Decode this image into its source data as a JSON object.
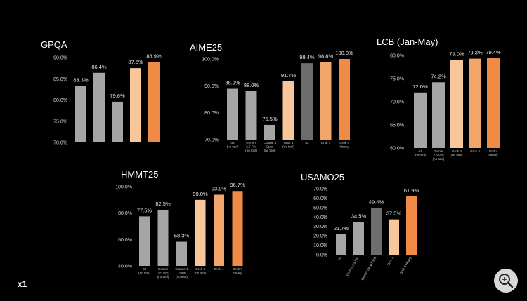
{
  "logo_text": "x1",
  "colors": {
    "grey": "#a3a6a2",
    "dark_grey": "#6b6e6b",
    "light_orange": "#f7c79b",
    "mid_orange": "#f3a66b",
    "orange": "#ef8b45",
    "tick_text": "#d9d9d9"
  },
  "icons": {
    "zoom": "zoom-in-icon"
  },
  "chart_data": [
    {
      "type": "bar",
      "title": "GPQA",
      "categories": [
        "",
        "",
        "",
        "",
        ""
      ],
      "values": [
        83.3,
        86.4,
        79.6,
        87.5,
        88.9
      ],
      "value_labels": [
        "83.3%",
        "86.4%",
        "79.6%",
        "87.5%",
        "88.9%"
      ],
      "colors": [
        "grey",
        "grey",
        "grey",
        "light_orange",
        "orange"
      ],
      "ylim": [
        70,
        90
      ],
      "yticks": [
        "70.0%",
        "75.0%",
        "80.0%",
        "85.0%",
        "90.0%"
      ],
      "ytick_values": [
        70,
        75,
        80,
        85,
        90
      ]
    },
    {
      "type": "bar",
      "title": "AIME25",
      "categories": [
        "o3\n(no tool)",
        "Gemini\n2.5 Pro\n(no tool)",
        "Claude 4\nOpus\n(no tool)",
        "Grok 4\n(no tool)",
        "o3",
        "Grok 4",
        "Grok 4\nHeavy"
      ],
      "values": [
        88.9,
        88.0,
        75.5,
        91.7,
        98.4,
        98.8,
        100.0
      ],
      "value_labels": [
        "88.9%",
        "88.0%",
        "75.5%",
        "91.7%",
        "98.4%",
        "98.8%",
        "100.0%"
      ],
      "colors": [
        "grey",
        "grey",
        "grey",
        "light_orange",
        "dark_grey",
        "mid_orange",
        "orange"
      ],
      "ylim": [
        70,
        100
      ],
      "yticks": [
        "70.0%",
        "80.0%",
        "90.0%",
        "100.0%"
      ],
      "ytick_values": [
        70,
        80,
        90,
        100
      ]
    },
    {
      "type": "bar",
      "title": "LCB (Jan-May)",
      "categories": [
        "o3\n(no tool)",
        "Gemini\n2.5 Pro\n(no tool)",
        "Grok 4\n(no tool)",
        "Grok 4",
        "Grok4\nHeavy"
      ],
      "values": [
        72.0,
        74.2,
        79.0,
        79.3,
        79.4
      ],
      "value_labels": [
        "72.0%",
        "74.2%",
        "79.0%",
        "79.3%",
        "79.4%"
      ],
      "colors": [
        "grey",
        "grey",
        "light_orange",
        "mid_orange",
        "orange"
      ],
      "ylim": [
        60,
        80
      ],
      "yticks": [
        "60.0%",
        "65.0%",
        "70.0%",
        "75.0%",
        "80.0%"
      ],
      "ytick_values": [
        60,
        65,
        70,
        75,
        80
      ]
    },
    {
      "type": "bar",
      "title": "HMMT25",
      "categories": [
        "o3\n(no tool)",
        "Gemini\n2.5 Pro\n(no tool)",
        "Claude 4\nOpus\n(no tool)",
        "Grok 4\n(no tool)",
        "Grok 4",
        "Grok 4\nHeavy"
      ],
      "values": [
        77.5,
        82.5,
        58.3,
        90.0,
        93.9,
        96.7
      ],
      "value_labels": [
        "77.5%",
        "82.5%",
        "58.3%",
        "90.0%",
        "93.9%",
        "96.7%"
      ],
      "colors": [
        "grey",
        "grey",
        "grey",
        "light_orange",
        "mid_orange",
        "orange"
      ],
      "ylim": [
        40,
        100
      ],
      "yticks": [
        "40.0%",
        "60.0%",
        "80.0%",
        "100.0%"
      ],
      "ytick_values": [
        40,
        60,
        80,
        100
      ]
    },
    {
      "type": "bar",
      "title": "USAMO25",
      "categories": [
        "o3",
        "Gemini 2.5 Pro",
        "Gemini DeepThink",
        "Grok 4",
        "Grok 4 Heavy"
      ],
      "values": [
        21.7,
        34.5,
        49.4,
        37.5,
        61.9
      ],
      "value_labels": [
        "21.7%",
        "34.5%",
        "49.4%",
        "37.5%",
        "61.9%"
      ],
      "colors": [
        "grey",
        "grey",
        "dark_grey",
        "light_orange",
        "orange"
      ],
      "ylim": [
        0,
        70
      ],
      "yticks": [
        "0.0%",
        "10.0%",
        "20.0%",
        "30.0%",
        "40.0%",
        "50.0%",
        "60.0%",
        "70.0%"
      ],
      "ytick_values": [
        0,
        10,
        20,
        30,
        40,
        50,
        60,
        70
      ]
    }
  ]
}
